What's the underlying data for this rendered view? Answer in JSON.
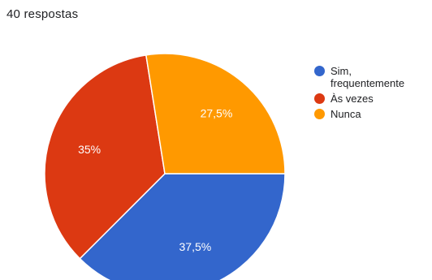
{
  "summary": "40 respostas",
  "chart_data": {
    "type": "pie",
    "categories": [
      "Sim, frequentemente",
      "Às vezes",
      "Nunca"
    ],
    "values": [
      37.5,
      35,
      27.5
    ],
    "value_labels": [
      "37,5%",
      "35%",
      "27,5%"
    ],
    "colors": [
      "#3366cc",
      "#dc3912",
      "#ff9900"
    ],
    "legend_position": "right"
  }
}
